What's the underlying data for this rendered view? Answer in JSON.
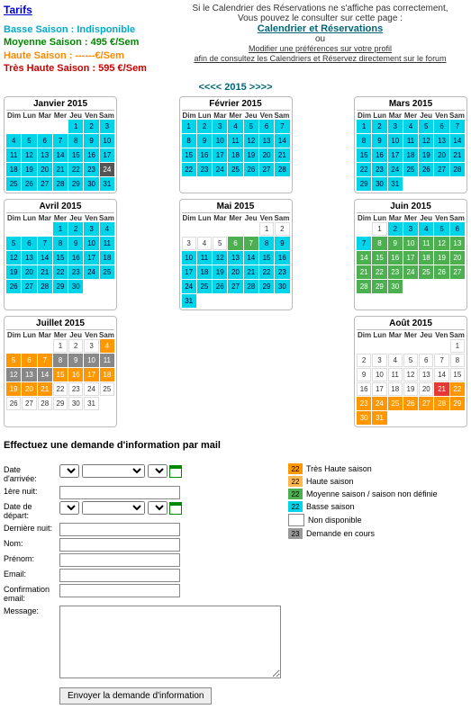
{
  "tarifs_title": "Tarifs",
  "seasons": {
    "low": "Basse Saison : Indisponible",
    "mid": "Moyenne Saison : 495 €/Sem",
    "high": "Haute Saison : ------€/Sem",
    "vhigh": "Très Haute Saison : 595 €/Sem"
  },
  "notice": {
    "line1": "Si le Calendrier des Réservations ne s'affiche pas correctement,",
    "line2": "Vous pouvez le consulter sur cette page :",
    "link": "Calendrier et Réservations",
    "or": "ou",
    "pref": "Modifier une préférences sur votre profil",
    "forum": "afin de consultez les Calendriers et Réservez directement sur le forum"
  },
  "year_nav": {
    "prev": "<<<<",
    "year": "2015",
    "next": ">>>>"
  },
  "dow": [
    "Dim",
    "Lun",
    "Mar",
    "Mer",
    "Jeu",
    "Ven",
    "Sam"
  ],
  "months": [
    {
      "title": "Janvier 2015",
      "lead": 4,
      "n": 31,
      "map": {
        "24": "darkgrey"
      },
      "def": "cyan",
      "trail": 0
    },
    {
      "title": "Février 2015",
      "lead": 0,
      "n": 28,
      "def": "cyan",
      "trail": 0
    },
    {
      "title": "Mars 2015",
      "lead": 0,
      "n": 31,
      "def": "cyan",
      "trail": 4
    },
    {
      "title": "Avril 2015",
      "lead": 3,
      "n": 30,
      "def": "cyan",
      "trail": 2
    },
    {
      "title": "Mai 2015",
      "lead": 5,
      "n": 31,
      "rows": [
        [
          null,
          null,
          null,
          null,
          null,
          "green",
          "green"
        ],
        [
          "cyan",
          "cyan",
          "cyan",
          "cyan",
          "cyan",
          "cyan",
          "cyan"
        ],
        [
          "cyan",
          "cyan",
          "cyan",
          "cyan",
          "cyan",
          "cyan",
          "cyan"
        ],
        [
          "cyan",
          "cyan",
          "cyan",
          "cyan",
          "cyan",
          "cyan",
          "cyan"
        ],
        [
          "cyan",
          "cyan",
          "cyan",
          "cyan",
          "cyan",
          "cyan",
          "cyan"
        ],
        [
          "green",
          null,
          null,
          null,
          null,
          null,
          null
        ]
      ],
      "trail": 6
    },
    {
      "title": "Juin 2015",
      "lead": 1,
      "n": 30,
      "rows": [
        [
          null,
          "cyan",
          "cyan",
          "cyan",
          "cyan",
          "cyan",
          "cyan"
        ],
        [
          "green",
          "green",
          "green",
          "green",
          "green",
          "green",
          "green"
        ],
        [
          "green",
          "green",
          "green",
          "green",
          "green",
          "green",
          "green"
        ],
        [
          "green",
          "green",
          "green",
          "green",
          "green",
          "green",
          "green"
        ],
        [
          "green",
          "green",
          "green",
          null,
          null,
          null,
          null
        ]
      ],
      "trail": 4
    },
    {
      "title": "Juillet 2015",
      "lead": 3,
      "n": 31,
      "rows": [
        [
          null,
          null,
          null,
          "orange",
          "orange",
          "orange",
          "orange"
        ],
        [
          "grey",
          "grey",
          "grey",
          "grey",
          "grey",
          "grey",
          "grey"
        ],
        [
          "orange",
          "orange",
          "orange",
          "orange",
          "orange",
          "orange",
          "orange"
        ],
        [
          "white",
          "white",
          "white",
          "white",
          "white",
          "white",
          "white"
        ],
        [
          "white",
          "white",
          "white",
          "white",
          "white",
          "white",
          null
        ]
      ],
      "trail": 1
    },
    {
      "title": "Août 2015",
      "lead": 6,
      "n": 31,
      "rows": [
        [
          null,
          null,
          null,
          null,
          null,
          null,
          "white"
        ],
        [
          "white",
          "white",
          "white",
          "white",
          "white",
          "white",
          "white"
        ],
        [
          "white",
          "white",
          "white",
          "white",
          "white",
          "white",
          "red"
        ],
        [
          "orange",
          "orange",
          "orange",
          "orange",
          "orange",
          "orange",
          "orange"
        ],
        [
          "orange",
          "orange",
          "orange",
          "orange",
          "orange",
          "orange",
          "orange"
        ],
        [
          "green",
          "green",
          null,
          null,
          null,
          null,
          null
        ]
      ],
      "trail": 5
    }
  ],
  "form_title": "Effectuez une demande d'information par mail",
  "form": {
    "date_arrivee": "Date d'arrivée:",
    "premiere_nuit": "1ère nuit:",
    "date_depart": "Date de départ:",
    "derniere_nuit": "Dernière nuit:",
    "nom": "Nom:",
    "prenom": "Prénom:",
    "email": "Email:",
    "conf_email": "Confirmation email:",
    "message": "Message:",
    "submit": "Envoyer la demande d'information"
  },
  "legend": [
    {
      "c": "#ff9800",
      "n": "22",
      "t": "Très Haute saison"
    },
    {
      "c": "#ffb84d",
      "n": "22",
      "t": "Haute saison"
    },
    {
      "c": "#4caf50",
      "n": "22",
      "t": "Moyenne saison / saison non définie"
    },
    {
      "c": "#00d4e8",
      "n": "22",
      "t": "Basse saison"
    },
    {
      "c": "#ffffff",
      "n": "",
      "t": "Non disponible",
      "b": "#888"
    },
    {
      "c": "#999",
      "n": "23",
      "t": "Demande en cours"
    }
  ]
}
